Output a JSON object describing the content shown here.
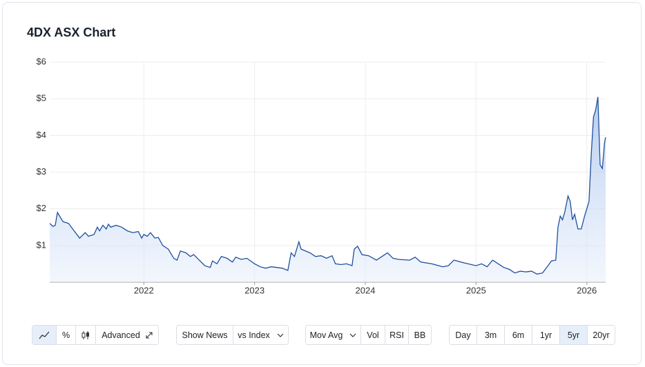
{
  "chart_data": {
    "type": "line",
    "title": "4DX ASX Chart",
    "color": "#1f4e9c",
    "grid": true,
    "ylim": [
      0,
      6
    ],
    "yticks": [
      {
        "value": 1,
        "label": "$1"
      },
      {
        "value": 2,
        "label": "$2"
      },
      {
        "value": 3,
        "label": "$3"
      },
      {
        "value": 4,
        "label": "$4"
      },
      {
        "value": 5,
        "label": "$5"
      },
      {
        "value": 6,
        "label": "$6"
      }
    ],
    "xlim": [
      2021.15,
      2026.17
    ],
    "xticks": [
      2022,
      2023,
      2024,
      2025,
      2026
    ],
    "x": [
      2021.15,
      2021.18,
      2021.2,
      2021.22,
      2021.27,
      2021.32,
      2021.37,
      2021.42,
      2021.47,
      2021.5,
      2021.55,
      2021.58,
      2021.6,
      2021.63,
      2021.66,
      2021.68,
      2021.7,
      2021.75,
      2021.8,
      2021.85,
      2021.9,
      2021.95,
      2021.98,
      2022.0,
      2022.03,
      2022.06,
      2022.1,
      2022.13,
      2022.17,
      2022.22,
      2022.27,
      2022.3,
      2022.33,
      2022.38,
      2022.42,
      2022.45,
      2022.5,
      2022.55,
      2022.6,
      2022.62,
      2022.66,
      2022.7,
      2022.75,
      2022.8,
      2022.83,
      2022.88,
      2022.93,
      2023.0,
      2023.05,
      2023.1,
      2023.15,
      2023.2,
      2023.25,
      2023.3,
      2023.33,
      2023.36,
      2023.4,
      2023.42,
      2023.5,
      2023.55,
      2023.6,
      2023.65,
      2023.7,
      2023.73,
      2023.78,
      2023.83,
      2023.88,
      2023.9,
      2023.93,
      2023.97,
      2024.03,
      2024.1,
      2024.15,
      2024.2,
      2024.25,
      2024.3,
      2024.4,
      2024.45,
      2024.5,
      2024.6,
      2024.7,
      2024.75,
      2024.8,
      2024.9,
      2025.0,
      2025.05,
      2025.1,
      2025.15,
      2025.2,
      2025.25,
      2025.3,
      2025.35,
      2025.4,
      2025.45,
      2025.5,
      2025.55,
      2025.6,
      2025.65,
      2025.68,
      2025.72,
      2025.74,
      2025.76,
      2025.78,
      2025.8,
      2025.83,
      2025.85,
      2025.87,
      2025.89,
      2025.92,
      2025.95,
      2025.98,
      2026.02,
      2026.04,
      2026.06,
      2026.08,
      2026.1,
      2026.12,
      2026.14,
      2026.16,
      2026.17
    ],
    "values": [
      1.6,
      1.52,
      1.55,
      1.9,
      1.65,
      1.6,
      1.4,
      1.2,
      1.35,
      1.25,
      1.3,
      1.5,
      1.4,
      1.55,
      1.45,
      1.58,
      1.5,
      1.55,
      1.5,
      1.4,
      1.35,
      1.38,
      1.2,
      1.3,
      1.25,
      1.35,
      1.2,
      1.22,
      1.0,
      0.9,
      0.65,
      0.6,
      0.85,
      0.8,
      0.7,
      0.75,
      0.6,
      0.45,
      0.4,
      0.58,
      0.5,
      0.7,
      0.65,
      0.55,
      0.68,
      0.62,
      0.65,
      0.5,
      0.42,
      0.38,
      0.42,
      0.4,
      0.38,
      0.32,
      0.8,
      0.7,
      1.1,
      0.9,
      0.8,
      0.7,
      0.72,
      0.65,
      0.72,
      0.5,
      0.48,
      0.5,
      0.45,
      0.9,
      0.98,
      0.75,
      0.72,
      0.6,
      0.7,
      0.8,
      0.65,
      0.62,
      0.6,
      0.68,
      0.55,
      0.5,
      0.42,
      0.45,
      0.6,
      0.52,
      0.45,
      0.5,
      0.42,
      0.6,
      0.5,
      0.4,
      0.35,
      0.25,
      0.3,
      0.28,
      0.3,
      0.22,
      0.25,
      0.45,
      0.58,
      0.6,
      1.5,
      1.8,
      1.7,
      1.9,
      2.35,
      2.2,
      1.7,
      1.85,
      1.45,
      1.45,
      1.8,
      2.2,
      3.5,
      4.5,
      4.7,
      5.05,
      3.2,
      3.1,
      3.8,
      3.95
    ]
  },
  "controls": {
    "percent": "%",
    "advanced": "Advanced",
    "show_news": "Show News",
    "vs_index": "vs Index",
    "indicators": [
      "Mov Avg",
      "Vol",
      "RSI",
      "BB"
    ],
    "ranges": [
      "Day",
      "3m",
      "6m",
      "1yr",
      "5yr",
      "20yr"
    ]
  }
}
